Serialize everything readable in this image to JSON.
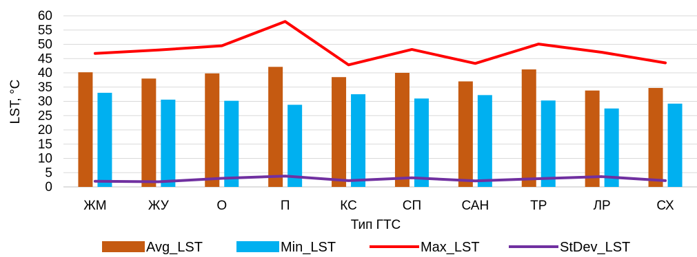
{
  "chart_data": {
    "type": "bar",
    "title": "",
    "xlabel": "Тип ГТС",
    "ylabel": "LST, °C",
    "ylim": [
      0,
      60
    ],
    "yticks": [
      0,
      5,
      10,
      15,
      20,
      25,
      30,
      35,
      40,
      45,
      50,
      55,
      60
    ],
    "grid": true,
    "legend_position": "bottom",
    "categories": [
      "ЖМ",
      "ЖУ",
      "О",
      "П",
      "КС",
      "СП",
      "САН",
      "ТР",
      "ЛР",
      "СХ"
    ],
    "series": [
      {
        "name": "Avg_LST",
        "kind": "bar",
        "color": "#C55A11",
        "values": [
          40.2,
          38.0,
          39.8,
          42.1,
          38.5,
          40.0,
          37.0,
          41.2,
          33.8,
          34.7
        ]
      },
      {
        "name": "Min_LST",
        "kind": "bar",
        "color": "#00B0F0",
        "values": [
          33.0,
          30.6,
          30.2,
          28.8,
          32.5,
          31.0,
          32.2,
          30.3,
          27.5,
          29.2
        ]
      },
      {
        "name": "Max_LST",
        "kind": "line",
        "color": "#FF0000",
        "values": [
          46.8,
          48.0,
          49.5,
          58.0,
          42.8,
          48.2,
          43.3,
          50.1,
          47.2,
          43.5
        ]
      },
      {
        "name": "StDev_LST",
        "kind": "line",
        "color": "#7030A0",
        "values": [
          2.0,
          1.8,
          3.0,
          3.8,
          2.2,
          3.2,
          2.1,
          2.9,
          3.6,
          2.2
        ]
      }
    ]
  }
}
